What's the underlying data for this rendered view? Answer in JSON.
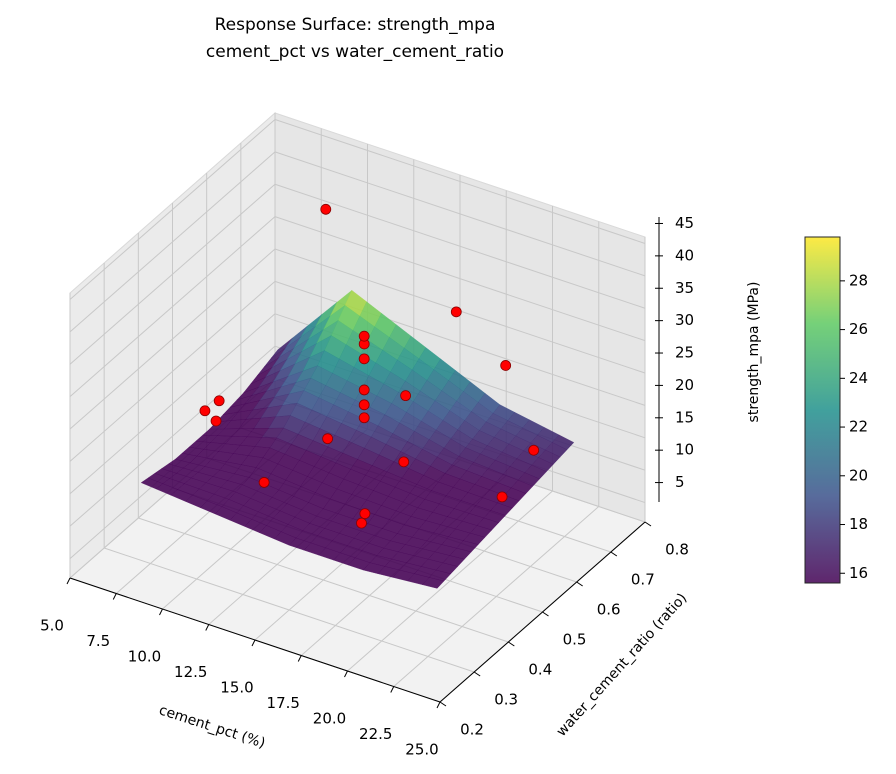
{
  "chart_data": {
    "type": "surface3d",
    "title": "Response Surface: strength_mpa",
    "subtitle": "cement_pct vs water_cement_ratio",
    "xlabel": "cement_pct (%)",
    "ylabel": "water_cement_ratio (ratio)",
    "zlabel": "strength_mpa (MPa)",
    "xlim": [
      5,
      25
    ],
    "ylim": [
      0.2,
      0.8
    ],
    "zlim": [
      2,
      46
    ],
    "xticks": [
      {
        "value": 5,
        "label": "5.0"
      },
      7.5,
      {
        "value": 10,
        "label": "10.0"
      },
      12.5,
      {
        "value": 15,
        "label": "15.0"
      },
      17.5,
      {
        "value": 20,
        "label": "20.0"
      },
      22.5,
      {
        "value": 25,
        "label": "25.0"
      }
    ],
    "yticks": [
      0.2,
      0.3,
      0.4,
      0.5,
      0.6,
      0.7,
      0.8
    ],
    "zticks": [
      5,
      10,
      15,
      20,
      25,
      30,
      35,
      40,
      45
    ],
    "grid": true,
    "surface": {
      "x": [
        7,
        11,
        15,
        19,
        23
      ],
      "y": [
        0.3,
        0.4,
        0.5,
        0.6,
        0.7
      ],
      "z": [
        [
          14,
          13,
          12,
          12,
          13
        ],
        [
          13,
          14,
          13,
          13,
          14
        ],
        [
          13,
          17,
          16,
          15,
          15
        ],
        [
          14,
          22,
          20,
          17,
          16
        ],
        [
          16,
          29,
          24,
          19,
          17
        ]
      ],
      "colormap": "viridis"
    },
    "colorbar": {
      "lim": [
        15.6,
        29.8
      ],
      "ticks": [
        16,
        18,
        20,
        22,
        24,
        26,
        28
      ]
    },
    "scatter": {
      "color": "#ff0000",
      "x": [
        10.7,
        17.2,
        19.5,
        21.2,
        20.6,
        17.5,
        15.4,
        15.4,
        11.8,
        13.2,
        8.6,
        9.0,
        9.2,
        13.7,
        13.7,
        13.7,
        13.7,
        13.7,
        13.7,
        15.2
      ],
      "y": [
        0.64,
        0.67,
        0.69,
        0.68,
        0.62,
        0.5,
        0.5,
        0.49,
        0.4,
        0.51,
        0.4,
        0.42,
        0.4,
        0.59,
        0.59,
        0.59,
        0.59,
        0.59,
        0.59,
        0.63
      ],
      "z": [
        44,
        33,
        26,
        15,
        10,
        18,
        8,
        7,
        14,
        17,
        22,
        23,
        21,
        17,
        19,
        21.3,
        26.1,
        28.4,
        29.6,
        20
      ]
    }
  }
}
